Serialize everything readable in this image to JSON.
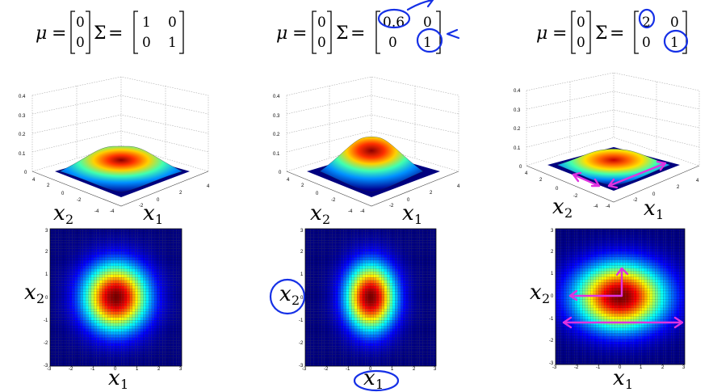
{
  "panels": [
    {
      "mu": [
        "0",
        "0"
      ],
      "sigma": [
        [
          "1",
          "0"
        ],
        [
          "0",
          "1"
        ]
      ],
      "mu_label": "μ",
      "sigma_label": "Σ",
      "variance": [
        1,
        1
      ],
      "surface": {
        "z_ticks": [
          "0.4",
          "0.3",
          "0.2",
          "0.1",
          "0"
        ],
        "left_ticks": [
          "4",
          "2",
          "0",
          "-2",
          "-4"
        ],
        "right_ticks": [
          "-4",
          "-2",
          "0",
          "2",
          "4"
        ],
        "xlabel_left": "x",
        "xlabel_left_sub": "2",
        "xlabel_right": "x",
        "xlabel_right_sub": "1"
      },
      "heatmap": {
        "x_ticks": [
          "-3",
          "-2",
          "-1",
          "0",
          "1",
          "2",
          "3"
        ],
        "y_ticks": [
          "3",
          "2",
          "1",
          "0",
          "-1",
          "-2",
          "-3"
        ],
        "xlabel": "x",
        "xlabel_sub": "1",
        "ylabel": "x",
        "ylabel_sub": "2"
      }
    },
    {
      "mu": [
        "0",
        "0"
      ],
      "sigma": [
        [
          "0.6",
          "0"
        ],
        [
          "0",
          "1"
        ]
      ],
      "mu_label": "μ",
      "sigma_label": "Σ",
      "variance": [
        0.6,
        1
      ],
      "surface": {
        "z_ticks": [
          "0.4",
          "0.3",
          "0.2",
          "0.1",
          "0"
        ],
        "left_ticks": [
          "4",
          "2",
          "0",
          "-2",
          "-4"
        ],
        "right_ticks": [
          "-4",
          "-2",
          "0",
          "2",
          "4"
        ],
        "xlabel_left": "x",
        "xlabel_left_sub": "2",
        "xlabel_right": "x",
        "xlabel_right_sub": "1"
      },
      "heatmap": {
        "x_ticks": [
          "-3",
          "-2",
          "-1",
          "0",
          "1",
          "2",
          "3"
        ],
        "y_ticks": [
          "3",
          "2",
          "1",
          "0",
          "-1",
          "-2",
          "-3"
        ],
        "xlabel": "x",
        "xlabel_sub": "1",
        "ylabel": "x",
        "ylabel_sub": "2"
      }
    },
    {
      "mu": [
        "0",
        "0"
      ],
      "sigma": [
        [
          "2",
          "0"
        ],
        [
          "0",
          "1"
        ]
      ],
      "mu_label": "μ",
      "sigma_label": "Σ",
      "variance": [
        2,
        1
      ],
      "surface": {
        "z_ticks": [
          "0.4",
          "0.3",
          "0.2",
          "0.1",
          "0"
        ],
        "left_ticks": [
          "4",
          "2",
          "0",
          "-2",
          "-4"
        ],
        "right_ticks": [
          "-4",
          "-2",
          "0",
          "2",
          "4"
        ],
        "xlabel_left": "x",
        "xlabel_left_sub": "2",
        "xlabel_right": "x",
        "xlabel_right_sub": "1"
      },
      "heatmap": {
        "x_ticks": [
          "-3",
          "-2",
          "-1",
          "0",
          "1",
          "2",
          "3"
        ],
        "y_ticks": [
          "3",
          "2",
          "1",
          "0",
          "-1",
          "-2",
          "-3"
        ],
        "xlabel": "x",
        "xlabel_sub": "1",
        "ylabel": "x",
        "ylabel_sub": "2"
      }
    }
  ],
  "colors": {
    "ink_blue": "#1530e6",
    "ink_magenta": "#e032e0",
    "background": "#ffffff"
  }
}
